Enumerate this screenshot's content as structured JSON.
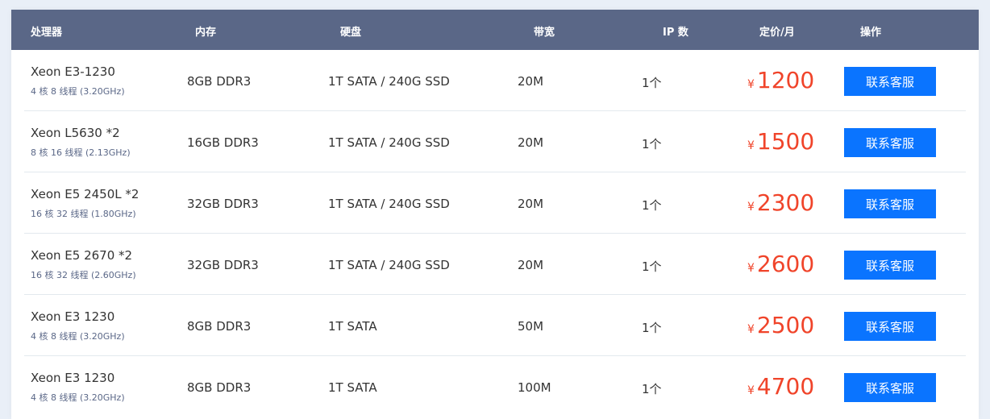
{
  "headers": [
    "处理器",
    "内存",
    "硬盘",
    "带宽",
    "IP 数",
    "定价/月",
    "操作"
  ],
  "currency": "¥",
  "rows": [
    {
      "cpu": "Xeon E3-1230",
      "spec": "4 核 8 线程 (3.20GHz)",
      "memory": "8GB DDR3",
      "disk": "1T SATA / 240G SSD",
      "bandwidth": "20M",
      "ip": "1个",
      "price": "1200",
      "action": "联系客服"
    },
    {
      "cpu": "Xeon L5630 *2",
      "spec": "8 核 16 线程 (2.13GHz)",
      "memory": "16GB DDR3",
      "disk": "1T SATA / 240G SSD",
      "bandwidth": "20M",
      "ip": "1个",
      "price": "1500",
      "action": "联系客服"
    },
    {
      "cpu": "Xeon E5 2450L *2",
      "spec": "16 核 32 线程 (1.80GHz)",
      "memory": "32GB DDR3",
      "disk": "1T SATA / 240G SSD",
      "bandwidth": "20M",
      "ip": "1个",
      "price": "2300",
      "action": "联系客服"
    },
    {
      "cpu": "Xeon E5 2670 *2",
      "spec": "16 核 32 线程 (2.60GHz)",
      "memory": "32GB DDR3",
      "disk": "1T SATA / 240G SSD",
      "bandwidth": "20M",
      "ip": "1个",
      "price": "2600",
      "action": "联系客服"
    },
    {
      "cpu": "Xeon E3 1230",
      "spec": "4 核 8 线程 (3.20GHz)",
      "memory": "8GB DDR3",
      "disk": "1T SATA",
      "bandwidth": "50M",
      "ip": "1个",
      "price": "2500",
      "action": "联系客服"
    },
    {
      "cpu": "Xeon E3 1230",
      "spec": "4 核 8 线程 (3.20GHz)",
      "memory": "8GB DDR3",
      "disk": "1T SATA",
      "bandwidth": "100M",
      "ip": "1个",
      "price": "4700",
      "action": "联系客服"
    }
  ]
}
